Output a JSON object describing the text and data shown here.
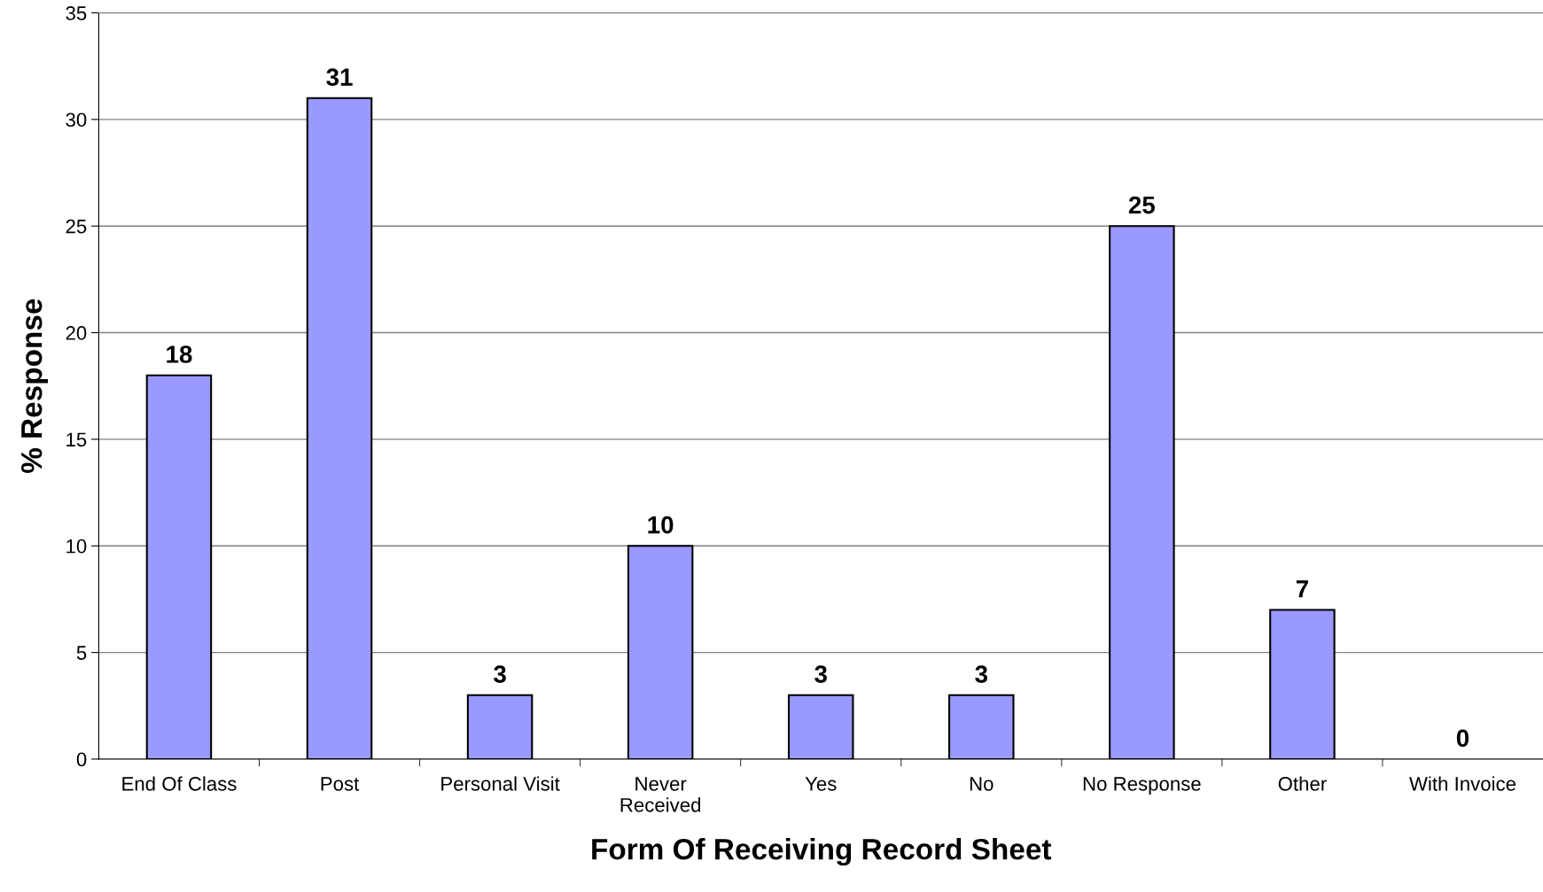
{
  "chart_data": {
    "type": "bar",
    "xlabel": "Form Of Receiving Record Sheet",
    "ylabel": "% Response",
    "categories": [
      "End Of Class",
      "Post",
      "Personal Visit",
      "Never\nReceived",
      "Yes",
      "No",
      "No Response",
      "Other",
      "With Invoice"
    ],
    "values": [
      18,
      31,
      3,
      10,
      3,
      3,
      25,
      7,
      0
    ],
    "color": "#9999ff",
    "ylim": [
      0,
      35
    ],
    "yticks": [
      0,
      5,
      10,
      15,
      20,
      25,
      30,
      35
    ],
    "grid": "y",
    "data_labels": true
  }
}
